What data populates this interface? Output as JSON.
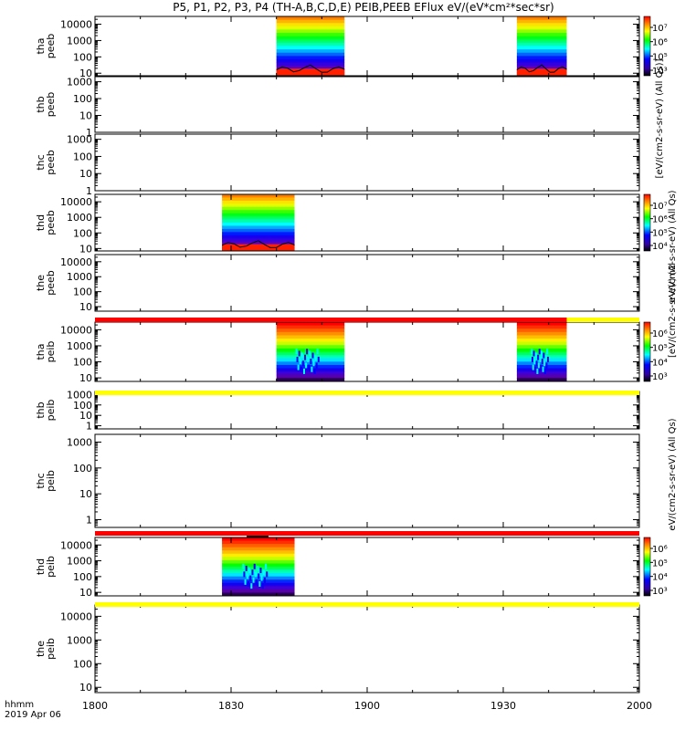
{
  "chart_data": {
    "type": "heatmap",
    "title": "P5, P1, P2, P3, P4 (TH-A,B,C,D,E) PEIB,PEEB EFlux eV/(eV*cm²*sec*sr)",
    "x_axis": {
      "range": [
        "18:00",
        "20:00"
      ],
      "tick_labels": [
        "1800",
        "1830",
        "1900",
        "1930",
        "2000"
      ],
      "label_lines": [
        "hhmm",
        "2019 Apr 06"
      ]
    },
    "y_scale": "log",
    "panels": [
      {
        "id": "tha-peeb",
        "ylabel": [
          "tha",
          "peeb"
        ],
        "ylim": [
          7,
          30000
        ],
        "yticks": [
          "10",
          "100",
          "1000",
          "10000"
        ],
        "data_intervals": [
          [
            "18:40",
            "18:55"
          ],
          [
            "19:33",
            "19:44"
          ]
        ]
      },
      {
        "id": "thb-peeb",
        "ylabel": [
          "thb",
          "peeb"
        ],
        "ylim": [
          1,
          2000
        ],
        "yticks": [
          "1",
          "10",
          "100",
          "1000"
        ],
        "data_intervals": []
      },
      {
        "id": "thc-peeb",
        "ylabel": [
          "thc",
          "peeb"
        ],
        "ylim": [
          1,
          2000
        ],
        "yticks": [
          "1",
          "10",
          "100",
          "1000"
        ],
        "data_intervals": []
      },
      {
        "id": "thd-peeb",
        "ylabel": [
          "thd",
          "peeb"
        ],
        "ylim": [
          7,
          30000
        ],
        "yticks": [
          "10",
          "100",
          "1000",
          "10000"
        ],
        "data_intervals": [
          [
            "18:28",
            "18:44"
          ]
        ]
      },
      {
        "id": "the-peeb",
        "ylabel": [
          "the",
          "peeb"
        ],
        "ylim": [
          5,
          30000
        ],
        "yticks": [
          "10",
          "100",
          "1000",
          "10000"
        ],
        "data_intervals": []
      },
      {
        "id": "tha-peib",
        "ylabel": [
          "tha",
          "peib"
        ],
        "ylim": [
          6,
          30000
        ],
        "yticks": [
          "10",
          "100",
          "1000",
          "10000"
        ],
        "data_intervals": [
          [
            "18:40",
            "18:55"
          ],
          [
            "19:33",
            "19:44"
          ]
        ]
      },
      {
        "id": "thb-peib",
        "ylabel": [
          "thb",
          "peib"
        ],
        "ylim": [
          0.5,
          2000
        ],
        "yticks": [
          "1",
          "10",
          "100",
          "1000"
        ],
        "data_intervals": []
      },
      {
        "id": "thc-peib",
        "ylabel": [
          "thc",
          "peib"
        ],
        "ylim": [
          0.5,
          2000
        ],
        "yticks": [
          "1",
          "10",
          "100",
          "1000"
        ],
        "data_intervals": []
      },
      {
        "id": "thd-peib",
        "ylabel": [
          "thd",
          "peib"
        ],
        "ylim": [
          6,
          30000
        ],
        "yticks": [
          "10",
          "100",
          "1000",
          "10000"
        ],
        "data_intervals": [
          [
            "18:28",
            "18:44"
          ]
        ]
      },
      {
        "id": "the-peib",
        "ylabel": [
          "the",
          "peib"
        ],
        "ylim": [
          6,
          30000
        ],
        "yticks": [
          "10",
          "100",
          "1000",
          "10000"
        ],
        "data_intervals": []
      }
    ],
    "colorbars": [
      {
        "panel": "tha-peeb",
        "ticks": [
          "10⁷",
          "10⁶",
          "10⁵",
          "10³"
        ],
        "label": "[eV/(cm2-s-sr-eV) (Al"
      },
      {
        "panel": "thd-peeb",
        "ticks": [
          "10⁷",
          "10⁶",
          "10⁵",
          "10⁴"
        ],
        "label": "[eV/(cm2-s-sr-eV) (All Qs)]"
      },
      {
        "panel": "tha-peib",
        "ticks": [
          "10⁶",
          "10⁵",
          "10⁴",
          "10³"
        ],
        "label": "[eV/(cm2-s-sr-eV) (All Qs)]"
      },
      {
        "panel": "thd-peib",
        "ticks": [
          "10⁶",
          "10⁵",
          "10⁴",
          "10³"
        ],
        "label": "[eV/(cm2-s-sr-eV) (All Qs)]"
      }
    ],
    "side_labels": [
      "[eV/(cm2-s-sr-eV) (All Qs)]",
      "eV/(cm2-s-sr-eV) (All Qs)",
      "[eV/(cm2-s-sr-eV) (Al",
      "eV/(cm2-s-sr-eV) (All Qs)"
    ],
    "status_bars": [
      {
        "after_panel": "the-peeb",
        "segments": [
          {
            "from": "18:00",
            "to": "19:44",
            "color": "#ff0000"
          },
          {
            "from": "19:44",
            "to": "20:00",
            "color": "#ffff00"
          }
        ]
      },
      {
        "after_panel": "tha-peib",
        "segments": [
          {
            "from": "18:00",
            "to": "20:00",
            "color": "#ffff00"
          }
        ]
      },
      {
        "after_panel": "thc-peib",
        "segments": [
          {
            "from": "18:00",
            "to": "20:00",
            "color": "#ff0000"
          }
        ]
      },
      {
        "after_panel": "thd-peib",
        "segments": [
          {
            "from": "18:00",
            "to": "20:00",
            "color": "#ffff00"
          }
        ]
      }
    ],
    "colormap": [
      "#ff0000",
      "#ff8000",
      "#ffff00",
      "#00ff00",
      "#00ffff",
      "#0000ff",
      "#8000ff",
      "#000000"
    ]
  }
}
